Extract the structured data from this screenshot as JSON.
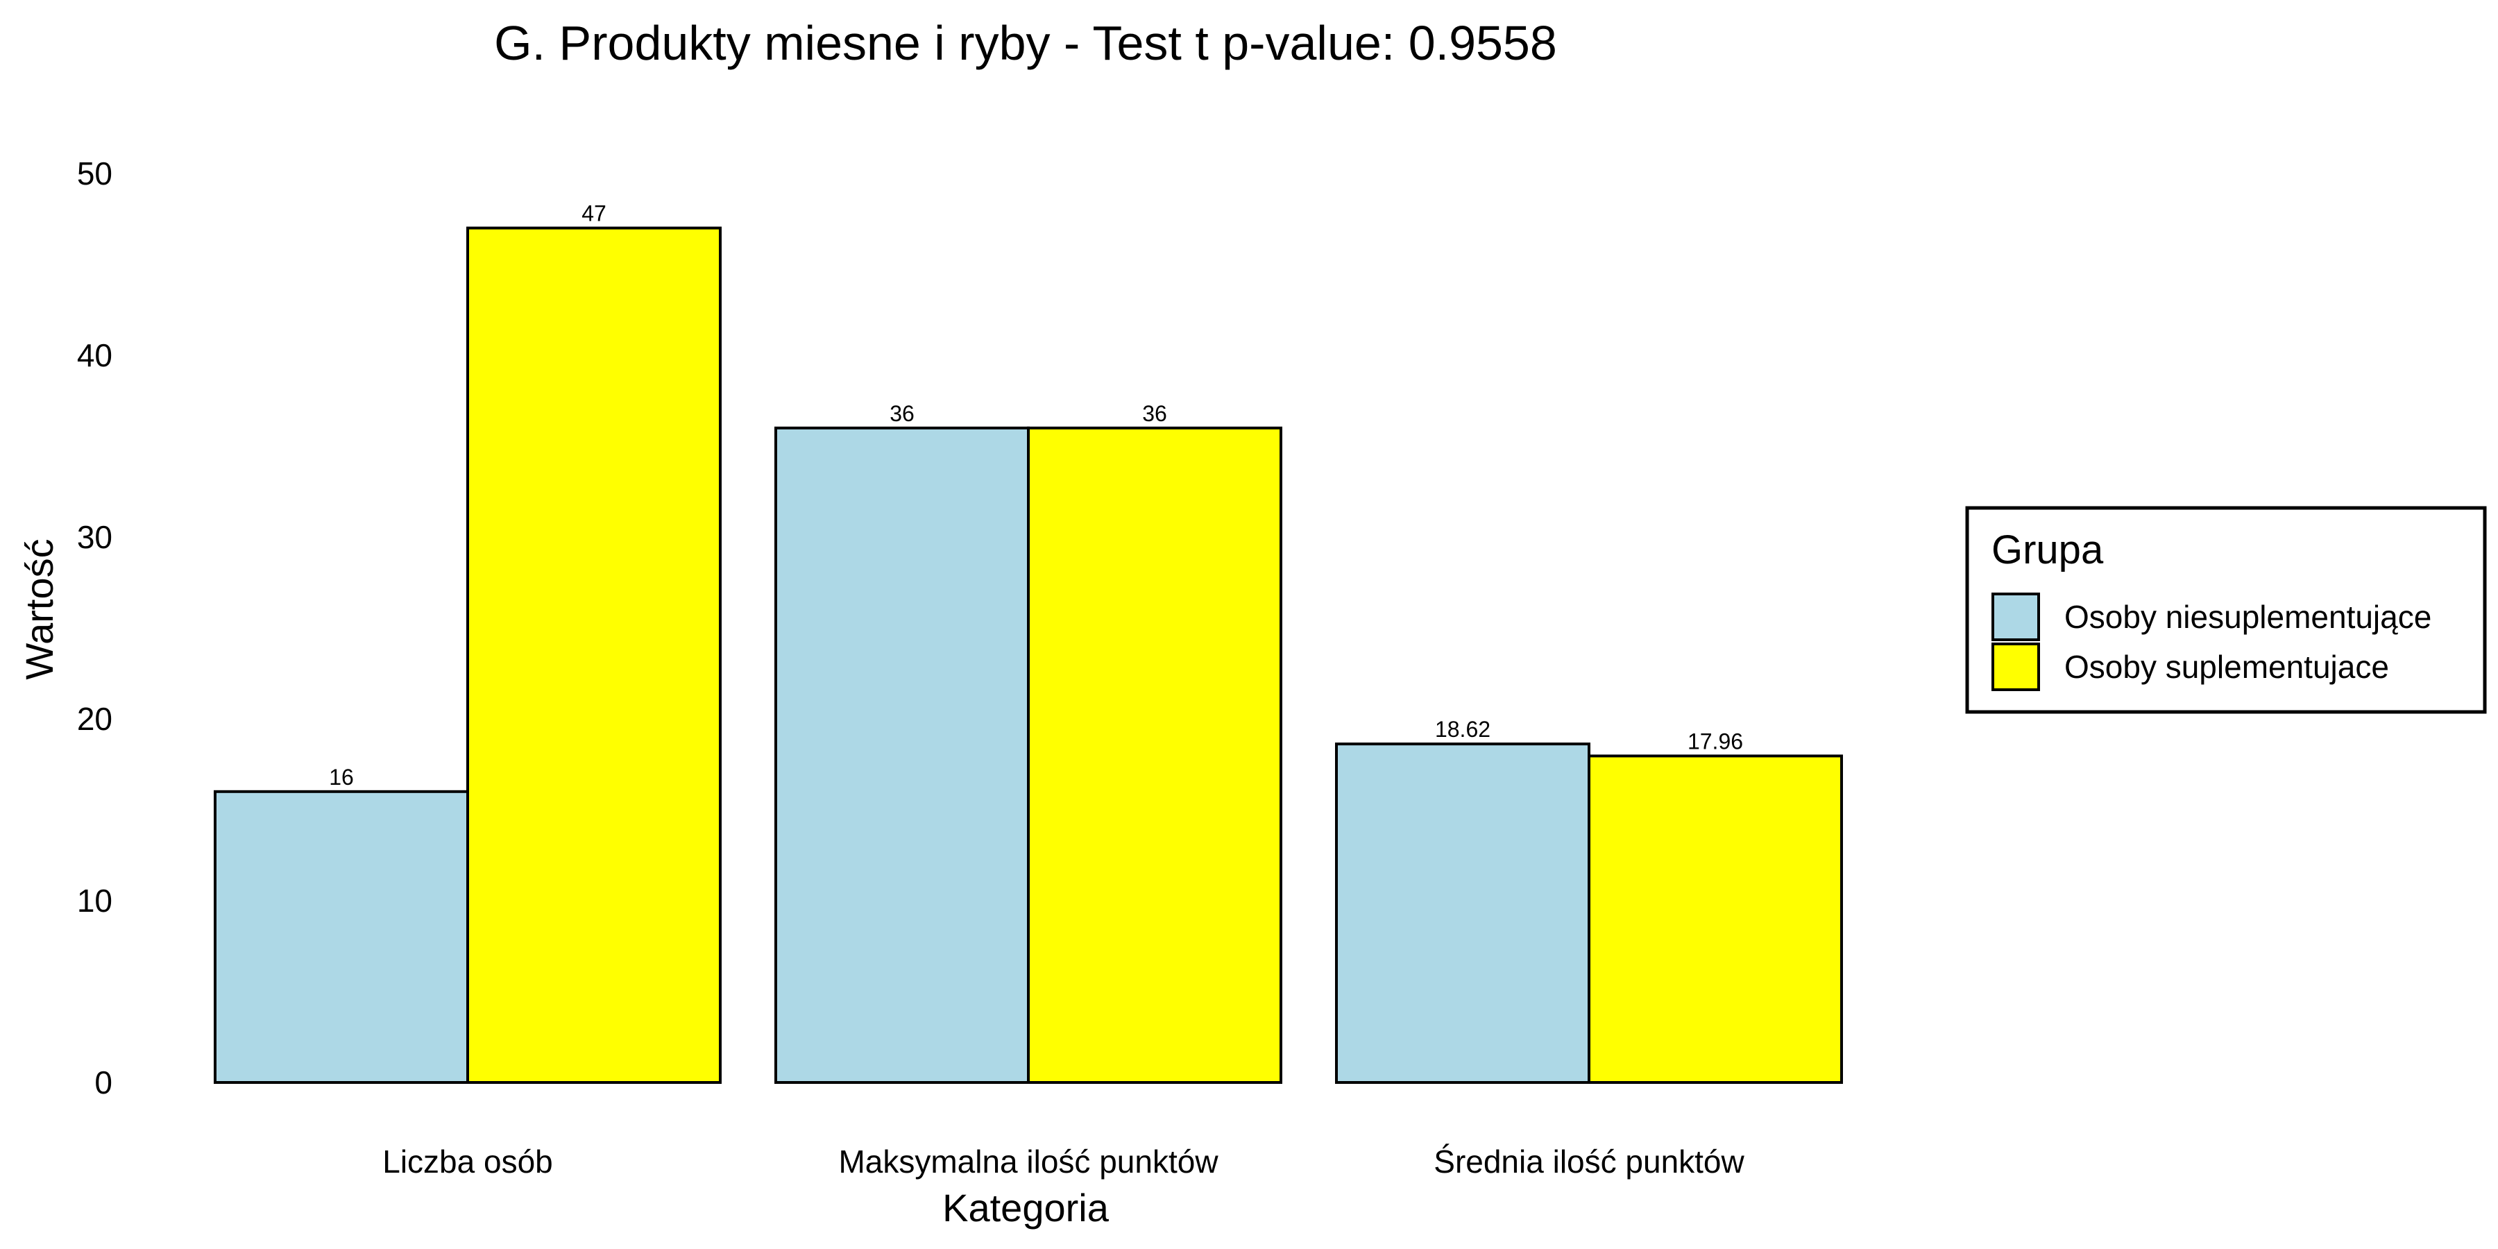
{
  "chart_data": {
    "type": "bar",
    "title": "G. Produkty miesne i ryby - Test t p-value: 0.9558",
    "xlabel": "Kategoria",
    "ylabel": "Wartość",
    "categories": [
      "Liczba osób",
      "Maksymalna ilość punktów",
      "Średnia ilość punktów"
    ],
    "series": [
      {
        "name": "Osoby niesuplementujące",
        "values": [
          16,
          36,
          18.62
        ],
        "labels": [
          "16",
          "36",
          "18.62"
        ],
        "color": "#add8e6"
      },
      {
        "name": "Osoby suplementujace",
        "values": [
          47,
          36,
          17.96
        ],
        "labels": [
          "47",
          "36",
          "17.96"
        ],
        "color": "#ffff00"
      }
    ],
    "ylim": [
      0,
      52
    ],
    "yticks": [
      0,
      10,
      20,
      30,
      40,
      50
    ],
    "ytick_labels": [
      "0",
      "10",
      "20",
      "30",
      "40",
      "50"
    ],
    "grid": false,
    "legend": {
      "title": "Grupa",
      "placement": "right"
    }
  }
}
